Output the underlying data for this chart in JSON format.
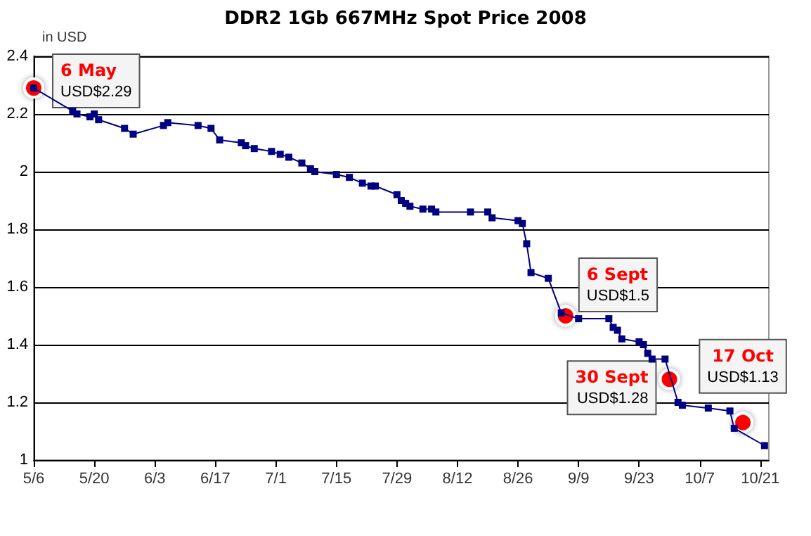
{
  "chart_data": {
    "type": "line",
    "title": "DDR2 1Gb 667MHz Spot Price 2008",
    "ylabel": "in USD",
    "x": [
      "2008-05-06",
      "2008-05-15",
      "2008-05-16",
      "2008-05-19",
      "2008-05-20",
      "2008-05-21",
      "2008-05-27",
      "2008-05-29",
      "2008-06-05",
      "2008-06-06",
      "2008-06-13",
      "2008-06-16",
      "2008-06-18",
      "2008-06-23",
      "2008-06-24",
      "2008-06-26",
      "2008-06-30",
      "2008-07-02",
      "2008-07-04",
      "2008-07-07",
      "2008-07-09",
      "2008-07-10",
      "2008-07-15",
      "2008-07-18",
      "2008-07-21",
      "2008-07-23",
      "2008-07-24",
      "2008-07-29",
      "2008-07-30",
      "2008-07-31",
      "2008-08-01",
      "2008-08-04",
      "2008-08-06",
      "2008-08-07",
      "2008-08-15",
      "2008-08-19",
      "2008-08-20",
      "2008-08-26",
      "2008-08-27",
      "2008-08-28",
      "2008-08-29",
      "2008-09-02",
      "2008-09-05",
      "2008-09-09",
      "2008-09-16",
      "2008-09-17",
      "2008-09-18",
      "2008-09-19",
      "2008-09-23",
      "2008-09-24",
      "2008-09-25",
      "2008-09-26",
      "2008-09-29",
      "2008-10-02",
      "2008-10-03",
      "2008-10-09",
      "2008-10-14",
      "2008-10-15",
      "2008-10-22"
    ],
    "series": [
      {
        "color": "#000080",
        "values": [
          2.29,
          2.21,
          2.2,
          2.19,
          2.2,
          2.18,
          2.15,
          2.13,
          2.16,
          2.17,
          2.16,
          2.15,
          2.11,
          2.1,
          2.09,
          2.08,
          2.07,
          2.06,
          2.05,
          2.03,
          2.01,
          2.0,
          1.99,
          1.98,
          1.96,
          1.95,
          1.95,
          1.92,
          1.9,
          1.89,
          1.88,
          1.87,
          1.87,
          1.86,
          1.86,
          1.86,
          1.84,
          1.83,
          1.82,
          1.75,
          1.65,
          1.63,
          1.51,
          1.49,
          1.49,
          1.46,
          1.45,
          1.42,
          1.41,
          1.4,
          1.37,
          1.35,
          1.35,
          1.2,
          1.19,
          1.18,
          1.17,
          1.11,
          1.05
        ]
      }
    ],
    "xlim": [
      "2008-05-06",
      "2008-10-23"
    ],
    "xticks": [
      {
        "value": "2008-05-06",
        "label": "5/6"
      },
      {
        "value": "2008-05-20",
        "label": "5/20"
      },
      {
        "value": "2008-06-03",
        "label": "6/3"
      },
      {
        "value": "2008-06-17",
        "label": "6/17"
      },
      {
        "value": "2008-07-01",
        "label": "7/1"
      },
      {
        "value": "2008-07-15",
        "label": "7/15"
      },
      {
        "value": "2008-07-29",
        "label": "7/29"
      },
      {
        "value": "2008-08-12",
        "label": "8/12"
      },
      {
        "value": "2008-08-26",
        "label": "8/26"
      },
      {
        "value": "2008-09-09",
        "label": "9/9"
      },
      {
        "value": "2008-09-23",
        "label": "9/23"
      },
      {
        "value": "2008-10-07",
        "label": "10/7"
      },
      {
        "value": "2008-10-21",
        "label": "10/21"
      }
    ],
    "ylim": [
      1,
      2.4
    ],
    "yticks": [
      1,
      1.2,
      1.4,
      1.6,
      1.8,
      2,
      2.2,
      2.4
    ],
    "grid": "y",
    "marker": "square",
    "line_style": "solid",
    "annotations": [
      {
        "text": "6 May\nUSD$2.29",
        "x": "2008-05-06",
        "y": 2.29
      },
      {
        "text": "6 Sept\nUSD$1.5",
        "x": "2008-09-06",
        "y": 1.5
      },
      {
        "text": "30 Sept\nUSD$1.28",
        "x": "2008-09-30",
        "y": 1.28
      },
      {
        "text": "17 Oct\nUSD$1.13",
        "x": "2008-10-17",
        "y": 1.13
      }
    ]
  }
}
